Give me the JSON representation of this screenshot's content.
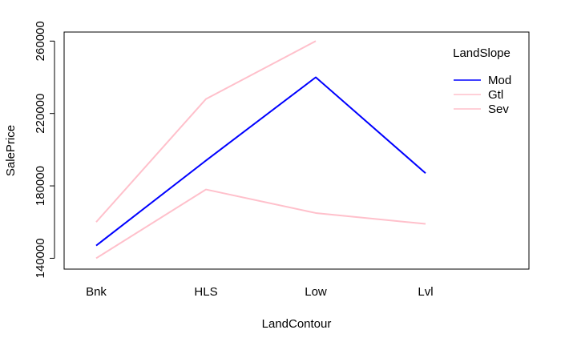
{
  "chart_data": {
    "type": "line",
    "xlabel": "LandContour",
    "ylabel": "SalePrice",
    "categories": [
      "Bnk",
      "HLS",
      "Low",
      "Lvl"
    ],
    "ylim": [
      134000,
      265000
    ],
    "yticks": [
      140000,
      180000,
      220000,
      260000
    ],
    "legend": {
      "title": "LandSlope",
      "placement": "top-right",
      "entries": [
        "Mod",
        "Gtl",
        "Sev"
      ]
    },
    "series": [
      {
        "name": "Mod",
        "color": "#0000ff",
        "values": [
          147000,
          194000,
          240000,
          187000
        ]
      },
      {
        "name": "Gtl",
        "color": "#ffc0cb",
        "values": [
          160000,
          228000,
          260000,
          null
        ]
      },
      {
        "name": "Sev",
        "color": "#ffc0cb",
        "values": [
          140000,
          178000,
          165000,
          159000
        ]
      }
    ],
    "grid": false
  }
}
